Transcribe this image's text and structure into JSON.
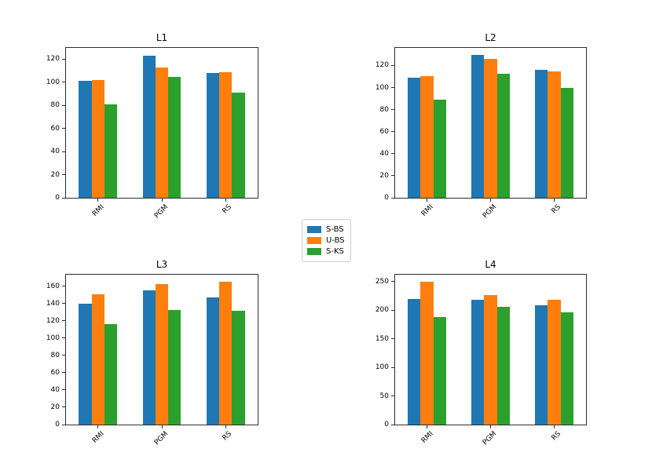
{
  "legend": {
    "items": [
      {
        "label": "S-BS",
        "color": "#1f77b4"
      },
      {
        "label": "U-BS",
        "color": "#ff7f0e"
      },
      {
        "label": "S-KS",
        "color": "#2ca02c"
      }
    ]
  },
  "chart_data": [
    {
      "type": "bar",
      "title": "L1",
      "categories": [
        "RMI",
        "PGM",
        "RS"
      ],
      "series": [
        {
          "name": "S-BS",
          "color": "#1f77b4",
          "values": [
            101,
            123,
            108
          ]
        },
        {
          "name": "U-BS",
          "color": "#ff7f0e",
          "values": [
            101.5,
            112.5,
            108.5
          ]
        },
        {
          "name": "S-KS",
          "color": "#2ca02c",
          "values": [
            80.5,
            104.5,
            91
          ]
        }
      ],
      "ylim": [
        0,
        129.5
      ],
      "yticks": [
        0,
        20,
        40,
        60,
        80,
        100,
        120
      ],
      "grid": false,
      "legend_position": "figure-center"
    },
    {
      "type": "bar",
      "title": "L2",
      "categories": [
        "RMI",
        "PGM",
        "RS"
      ],
      "series": [
        {
          "name": "S-BS",
          "color": "#1f77b4",
          "values": [
            109,
            129.5,
            116
          ]
        },
        {
          "name": "U-BS",
          "color": "#ff7f0e",
          "values": [
            110.5,
            126,
            115
          ]
        },
        {
          "name": "S-KS",
          "color": "#2ca02c",
          "values": [
            89,
            112.5,
            99.5
          ]
        }
      ],
      "ylim": [
        0,
        136
      ],
      "yticks": [
        0,
        20,
        40,
        60,
        80,
        100,
        120
      ],
      "grid": false,
      "legend_position": "figure-center"
    },
    {
      "type": "bar",
      "title": "L3",
      "categories": [
        "RMI",
        "PGM",
        "RS"
      ],
      "series": [
        {
          "name": "S-BS",
          "color": "#1f77b4",
          "values": [
            140,
            155.5,
            147.5
          ]
        },
        {
          "name": "U-BS",
          "color": "#ff7f0e",
          "values": [
            151,
            163,
            165
          ]
        },
        {
          "name": "S-KS",
          "color": "#2ca02c",
          "values": [
            116.5,
            133,
            131.5
          ]
        }
      ],
      "ylim": [
        0,
        173.5
      ],
      "yticks": [
        0,
        20,
        40,
        60,
        80,
        100,
        120,
        140,
        160
      ],
      "grid": false,
      "legend_position": "figure-center"
    },
    {
      "type": "bar",
      "title": "L4",
      "categories": [
        "RMI",
        "PGM",
        "RS"
      ],
      "series": [
        {
          "name": "S-BS",
          "color": "#1f77b4",
          "values": [
            219,
            218.5,
            209
          ]
        },
        {
          "name": "U-BS",
          "color": "#ff7f0e",
          "values": [
            249.5,
            226,
            218
          ]
        },
        {
          "name": "S-KS",
          "color": "#2ca02c",
          "values": [
            188.5,
            205.5,
            196
          ]
        }
      ],
      "ylim": [
        0,
        262
      ],
      "yticks": [
        0,
        50,
        100,
        150,
        200,
        250
      ],
      "grid": false,
      "legend_position": "figure-center"
    }
  ]
}
